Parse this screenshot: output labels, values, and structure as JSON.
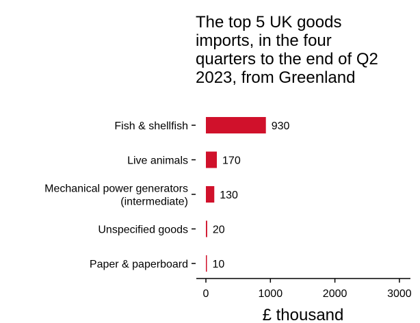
{
  "chart_data": {
    "type": "bar",
    "orientation": "horizontal",
    "title_lines": [
      "The top 5 UK goods",
      "imports, in the four",
      "quarters to the end of Q2",
      "2023, from Greenland"
    ],
    "categories": [
      [
        "Fish & shellfish"
      ],
      [
        "Live animals"
      ],
      [
        "Mechanical power generators",
        "(intermediate)"
      ],
      [
        "Unspecified goods"
      ],
      [
        "Paper & paperboard"
      ]
    ],
    "values": [
      930,
      170,
      130,
      20,
      10
    ],
    "value_labels": [
      "930",
      "170",
      "130",
      "20",
      "10"
    ],
    "xlabel": "£ thousand",
    "xlim": [
      0,
      3000
    ],
    "xticks": [
      0,
      1000,
      2000,
      3000
    ],
    "xtick_labels": [
      "0",
      "1000",
      "2000",
      "3000"
    ],
    "bar_color": "#d0112b",
    "grid": false
  }
}
